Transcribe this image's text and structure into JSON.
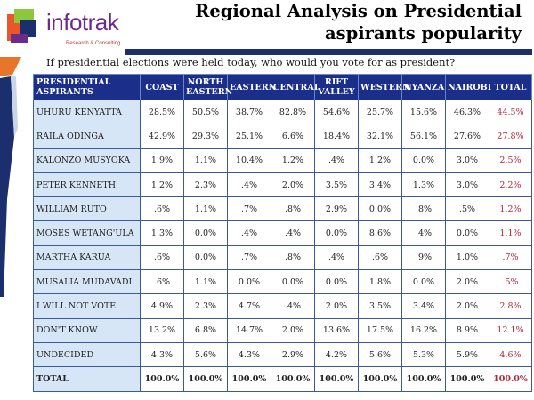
{
  "logo": {
    "name": "infotrak",
    "tagline": "Research & Consulting"
  },
  "title": "Regional Analysis on Presidential aspirants popularity",
  "question": "If presidential elections were held today, who would you vote for as president?",
  "headers": [
    "PRESIDENTIAL ASPIRANTS",
    "COAST",
    "NORTH EASTERN",
    "EASTERN",
    "CENTRAL",
    "RIFT VALLEY",
    "WESTERN",
    "NYANZA",
    "NAIROBI",
    "TOTAL"
  ],
  "rows": [
    {
      "name": "UHURU KENYATTA",
      "values": [
        "28.5%",
        "50.5%",
        "38.7%",
        "82.8%",
        "54.6%",
        "25.7%",
        "15.6%",
        "46.3%",
        "44.5%"
      ]
    },
    {
      "name": "RAILA ODINGA",
      "values": [
        "42.9%",
        "29.3%",
        "25.1%",
        "6.6%",
        "18.4%",
        "32.1%",
        "56.1%",
        "27.6%",
        "27.8%"
      ]
    },
    {
      "name": "KALONZO MUSYOKA",
      "values": [
        "1.9%",
        "1.1%",
        "10.4%",
        "1.2%",
        ".4%",
        "1.2%",
        "0.0%",
        "3.0%",
        "2.5%"
      ]
    },
    {
      "name": "PETER KENNETH",
      "values": [
        "1.2%",
        "2.3%",
        ".4%",
        "2.0%",
        "3.5%",
        "3.4%",
        "1.3%",
        "3.0%",
        "2.2%"
      ]
    },
    {
      "name": "WILLIAM RUTO",
      "values": [
        ".6%",
        "1.1%",
        ".7%",
        ".8%",
        "2.9%",
        "0.0%",
        ".8%",
        ".5%",
        "1.2%"
      ]
    },
    {
      "name": "MOSES WETANG'ULA",
      "values": [
        "1.3%",
        "0.0%",
        ".4%",
        ".4%",
        "0.0%",
        "8.6%",
        ".4%",
        "0.0%",
        "1.1%"
      ]
    },
    {
      "name": "MARTHA KARUA",
      "values": [
        ".6%",
        "0.0%",
        ".7%",
        ".8%",
        ".4%",
        ".6%",
        ".9%",
        "1.0%",
        ".7%"
      ]
    },
    {
      "name": "MUSALIA MUDAVADI",
      "values": [
        ".6%",
        "1.1%",
        "0.0%",
        "0.0%",
        "0.0%",
        "1.8%",
        "0.0%",
        "2.0%",
        ".5%"
      ]
    },
    {
      "name": "I WILL NOT VOTE",
      "values": [
        "4.9%",
        "2.3%",
        "4.7%",
        ".4%",
        "2.0%",
        "3.5%",
        "3.4%",
        "2.0%",
        "2.8%"
      ]
    },
    {
      "name": "DON'T KNOW",
      "values": [
        "13.2%",
        "6.8%",
        "14.7%",
        "2.0%",
        "13.6%",
        "17.5%",
        "16.2%",
        "8.9%",
        "12.1%"
      ]
    },
    {
      "name": "UNDECIDED",
      "values": [
        "4.3%",
        "5.6%",
        "4.3%",
        "2.9%",
        "4.2%",
        "5.6%",
        "5.3%",
        "5.9%",
        "4.6%"
      ]
    },
    {
      "name": "TOTAL",
      "values": [
        "100.0%",
        "100.0%",
        "100.0%",
        "100.0%",
        "100.0%",
        "100.0%",
        "100.0%",
        "100.0%",
        "100.0%"
      ]
    }
  ],
  "colors": {
    "header": "#1b2f8a",
    "name_col": "#d7e6f6",
    "total_col": "#b0283a"
  }
}
